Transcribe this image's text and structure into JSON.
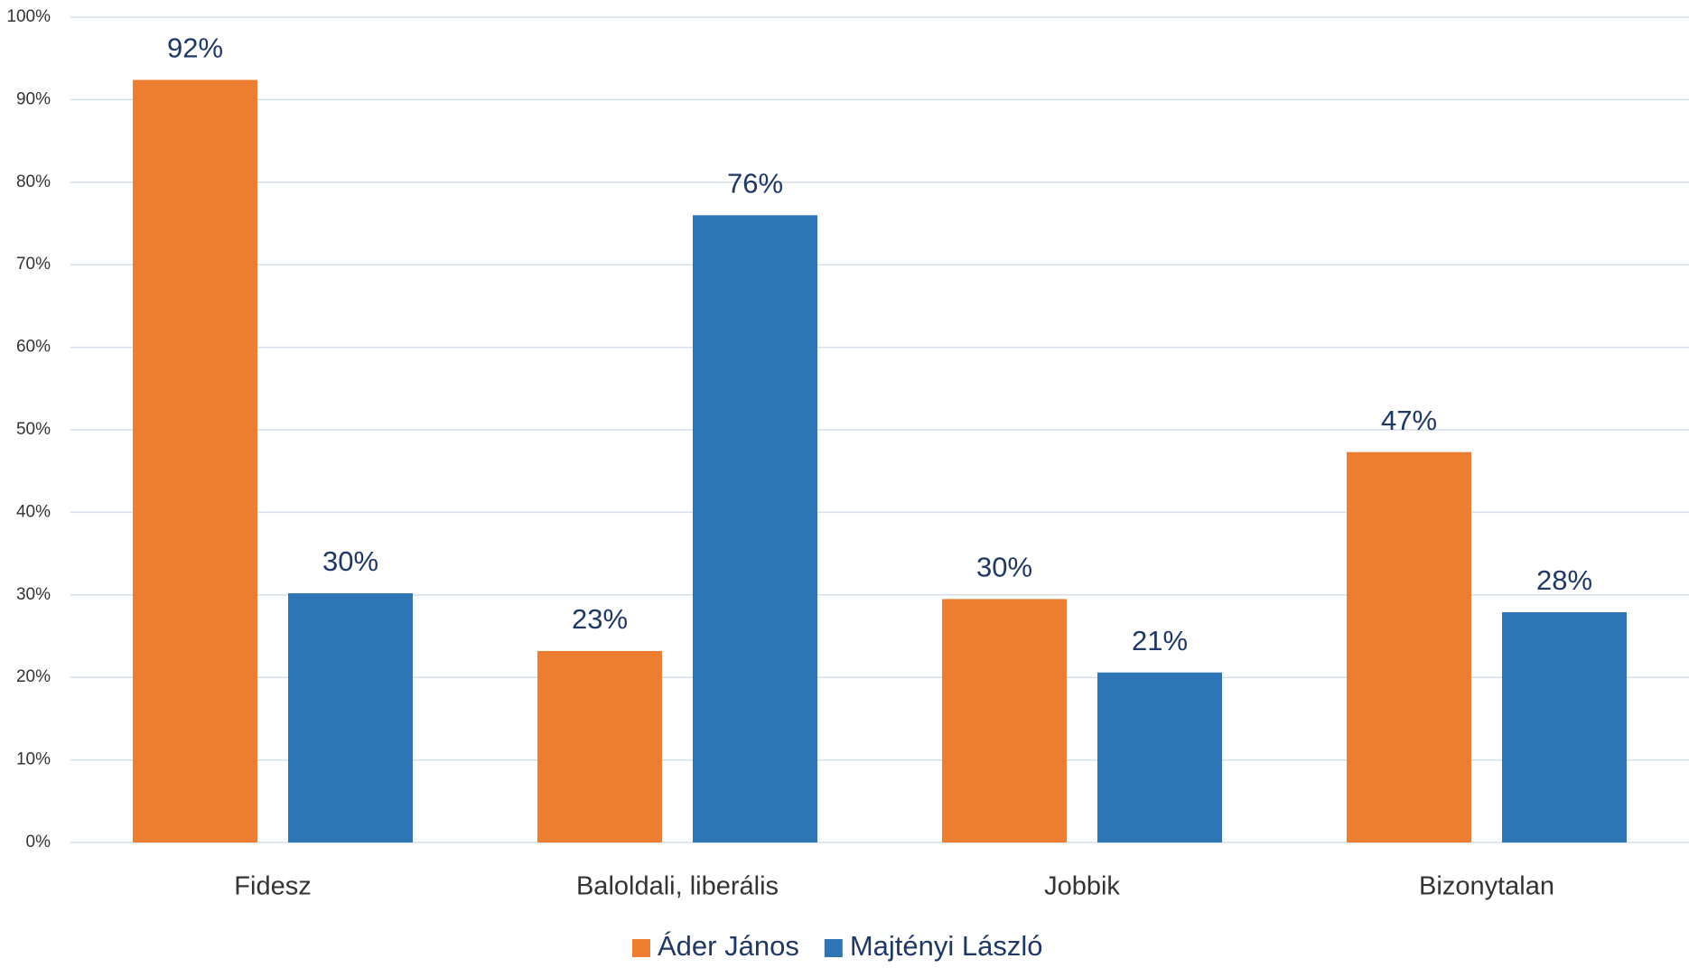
{
  "chart_data": {
    "type": "bar",
    "categories": [
      "Fidesz",
      "Baloldali, liberális",
      "Jobbik",
      "Bizonytalan"
    ],
    "series": [
      {
        "name": "Áder János",
        "color": "#ed7d31",
        "values": [
          92.4,
          23.2,
          29.5,
          47.3
        ],
        "value_labels": [
          "92%",
          "23%",
          "30%",
          "47%"
        ]
      },
      {
        "name": "Majtényi László",
        "color": "#2e75b6",
        "values": [
          30.2,
          76.0,
          20.6,
          27.9
        ],
        "value_labels": [
          "30%",
          "76%",
          "21%",
          "28%"
        ]
      }
    ],
    "ylim": [
      0,
      100
    ],
    "yticks": [
      {
        "value": 0,
        "label": "0%"
      },
      {
        "value": 10,
        "label": "10%"
      },
      {
        "value": 20,
        "label": "20%"
      },
      {
        "value": 30,
        "label": "30%"
      },
      {
        "value": 40,
        "label": "40%"
      },
      {
        "value": 50,
        "label": "50%"
      },
      {
        "value": 60,
        "label": "60%"
      },
      {
        "value": 70,
        "label": "70%"
      },
      {
        "value": 80,
        "label": "80%"
      },
      {
        "value": 90,
        "label": "90%"
      },
      {
        "value": 100,
        "label": "100%"
      }
    ],
    "grid": true
  }
}
